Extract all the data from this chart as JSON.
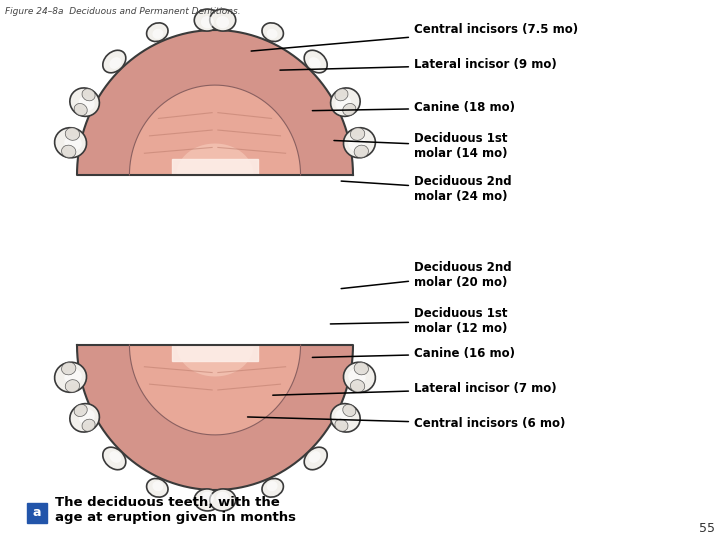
{
  "figure_title": "Figure 24–8a  Deciduous and Permanent Dentitions.",
  "page_number": "55",
  "caption_letter": "a",
  "caption_text": "The deciduous teeth, with the\nage at eruption given in months",
  "background_color": "#ffffff",
  "upper_labels": [
    {
      "text": "Central incisors (7.5 mo)",
      "xt": 0.575,
      "yt": 0.945,
      "xe": 0.345,
      "ye": 0.905
    },
    {
      "text": "Lateral incisor (9 mo)",
      "xt": 0.575,
      "yt": 0.88,
      "xe": 0.385,
      "ye": 0.87
    },
    {
      "text": "Canine (18 mo)",
      "xt": 0.575,
      "yt": 0.8,
      "xe": 0.43,
      "ye": 0.795
    },
    {
      "text": "Deciduous 1st\nmolar (14 mo)",
      "xt": 0.575,
      "yt": 0.73,
      "xe": 0.46,
      "ye": 0.74
    },
    {
      "text": "Deciduous 2nd\nmolar (24 mo)",
      "xt": 0.575,
      "yt": 0.65,
      "xe": 0.47,
      "ye": 0.665
    }
  ],
  "lower_labels": [
    {
      "text": "Deciduous 2nd\nmolar (20 mo)",
      "xt": 0.575,
      "yt": 0.49,
      "xe": 0.47,
      "ye": 0.465
    },
    {
      "text": "Deciduous 1st\nmolar (12 mo)",
      "xt": 0.575,
      "yt": 0.405,
      "xe": 0.455,
      "ye": 0.4
    },
    {
      "text": "Canine (16 mo)",
      "xt": 0.575,
      "yt": 0.345,
      "xe": 0.43,
      "ye": 0.338
    },
    {
      "text": "Lateral incisor (7 mo)",
      "xt": 0.575,
      "yt": 0.28,
      "xe": 0.375,
      "ye": 0.268
    },
    {
      "text": "Central incisors (6 mo)",
      "xt": 0.575,
      "yt": 0.215,
      "xe": 0.34,
      "ye": 0.228
    }
  ]
}
